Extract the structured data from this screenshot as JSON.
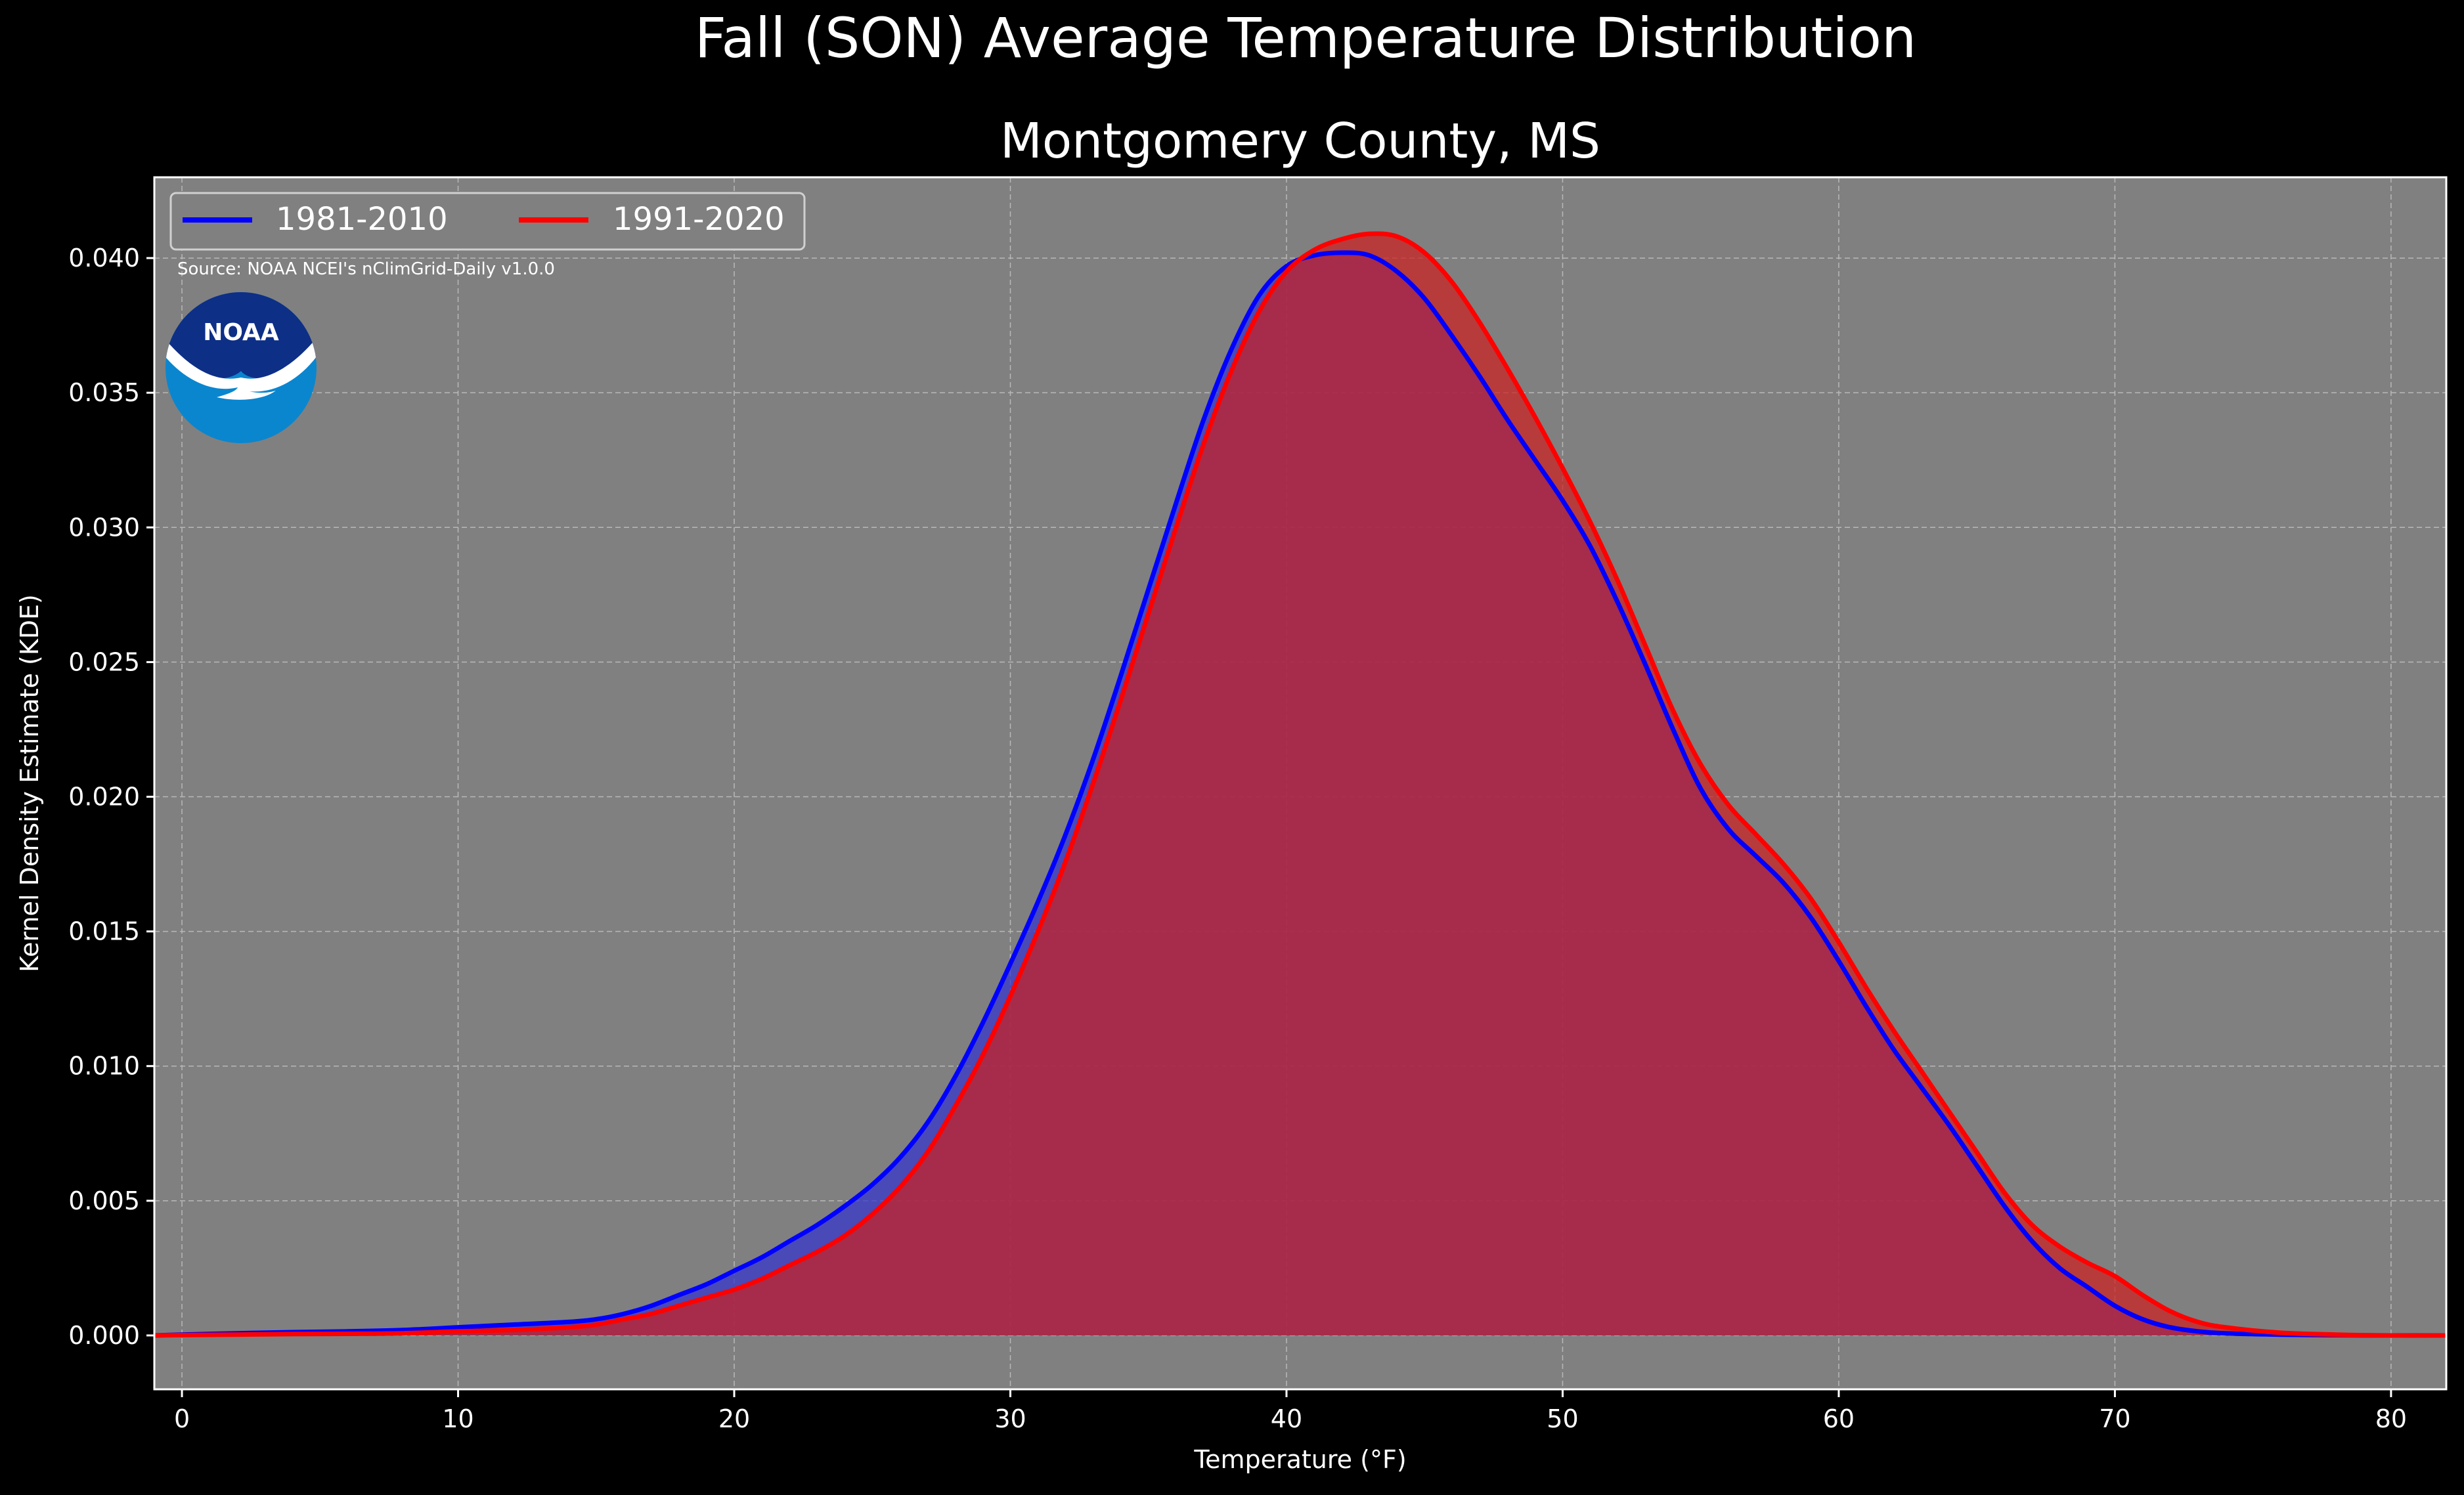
{
  "chart_data": {
    "type": "area",
    "suptitle": "Fall (SON) Average Temperature Distribution",
    "title": "Montgomery County, MS",
    "xlabel": "Temperature (°F)",
    "ylabel": "Kernel Density Estimate (KDE)",
    "xlim": [
      -1,
      82
    ],
    "ylim": [
      -0.002,
      0.043
    ],
    "xticks": [
      0,
      10,
      20,
      30,
      40,
      50,
      60,
      70,
      80
    ],
    "xtick_labels": [
      "0",
      "10",
      "20",
      "30",
      "40",
      "50",
      "60",
      "70",
      "80"
    ],
    "yticks": [
      0.0,
      0.005,
      0.01,
      0.015,
      0.02,
      0.025,
      0.03,
      0.035,
      0.04
    ],
    "ytick_labels": [
      "0.000",
      "0.005",
      "0.010",
      "0.015",
      "0.020",
      "0.025",
      "0.030",
      "0.035",
      "0.040"
    ],
    "grid": true,
    "legend_position": "top-left",
    "source_note": "Source: NOAA NCEI's nClimGrid-Daily v1.0.0",
    "logo_text": "NOAA",
    "series": [
      {
        "name": "1981-2010",
        "color": "#0000ff",
        "fill": "#3333cc",
        "points": [
          [
            -1,
            0.0
          ],
          [
            0,
            3e-05
          ],
          [
            2,
            8e-05
          ],
          [
            4,
            0.00012
          ],
          [
            6,
            0.00015
          ],
          [
            8,
            0.0002
          ],
          [
            10,
            0.0003
          ],
          [
            12,
            0.0004
          ],
          [
            14,
            0.0005
          ],
          [
            15,
            0.0006
          ],
          [
            16,
            0.0008
          ],
          [
            17,
            0.0011
          ],
          [
            18,
            0.0015
          ],
          [
            19,
            0.0019
          ],
          [
            20,
            0.0024
          ],
          [
            21,
            0.0029
          ],
          [
            22,
            0.0035
          ],
          [
            23,
            0.0041
          ],
          [
            24,
            0.0048
          ],
          [
            25,
            0.0056
          ],
          [
            26,
            0.0066
          ],
          [
            27,
            0.0079
          ],
          [
            28,
            0.0096
          ],
          [
            29,
            0.0116
          ],
          [
            30,
            0.0138
          ],
          [
            31,
            0.0161
          ],
          [
            32,
            0.0186
          ],
          [
            33,
            0.0214
          ],
          [
            34,
            0.0245
          ],
          [
            35,
            0.0277
          ],
          [
            36,
            0.0309
          ],
          [
            37,
            0.034
          ],
          [
            38,
            0.0366
          ],
          [
            39,
            0.0386
          ],
          [
            40,
            0.0397
          ],
          [
            41,
            0.0401
          ],
          [
            42,
            0.0402
          ],
          [
            43,
            0.0401
          ],
          [
            44,
            0.0395
          ],
          [
            45,
            0.0385
          ],
          [
            46,
            0.0371
          ],
          [
            47,
            0.0356
          ],
          [
            48,
            0.034
          ],
          [
            49,
            0.0325
          ],
          [
            50,
            0.031
          ],
          [
            51,
            0.0293
          ],
          [
            52,
            0.0272
          ],
          [
            53,
            0.0249
          ],
          [
            54,
            0.0225
          ],
          [
            55,
            0.0203
          ],
          [
            56,
            0.0188
          ],
          [
            57,
            0.0178
          ],
          [
            58,
            0.0168
          ],
          [
            59,
            0.0155
          ],
          [
            60,
            0.0139
          ],
          [
            61,
            0.0122
          ],
          [
            62,
            0.0106
          ],
          [
            63,
            0.0092
          ],
          [
            64,
            0.0078
          ],
          [
            65,
            0.0063
          ],
          [
            66,
            0.0048
          ],
          [
            67,
            0.0035
          ],
          [
            68,
            0.0025
          ],
          [
            69,
            0.0018
          ],
          [
            70,
            0.0011
          ],
          [
            71,
            0.0006
          ],
          [
            72,
            0.0003
          ],
          [
            73,
            0.00015
          ],
          [
            74,
            8e-05
          ],
          [
            76,
            3e-05
          ],
          [
            78,
            1e-05
          ],
          [
            80,
            0.0
          ],
          [
            82,
            0.0
          ]
        ]
      },
      {
        "name": "1991-2020",
        "color": "#ff0000",
        "fill": "#cc2020",
        "points": [
          [
            -1,
            0.0
          ],
          [
            0,
            1e-05
          ],
          [
            2,
            3e-05
          ],
          [
            4,
            5e-05
          ],
          [
            6,
            6e-05
          ],
          [
            8,
            8e-05
          ],
          [
            10,
            0.00015
          ],
          [
            12,
            0.0002
          ],
          [
            14,
            0.0003
          ],
          [
            15,
            0.0004
          ],
          [
            16,
            0.0006
          ],
          [
            17,
            0.0008
          ],
          [
            18,
            0.0011
          ],
          [
            19,
            0.0014
          ],
          [
            20,
            0.0017
          ],
          [
            21,
            0.0021
          ],
          [
            22,
            0.0026
          ],
          [
            23,
            0.0031
          ],
          [
            24,
            0.0037
          ],
          [
            25,
            0.0045
          ],
          [
            26,
            0.0055
          ],
          [
            27,
            0.0068
          ],
          [
            28,
            0.0085
          ],
          [
            29,
            0.0104
          ],
          [
            30,
            0.0126
          ],
          [
            31,
            0.015
          ],
          [
            32,
            0.0176
          ],
          [
            33,
            0.0205
          ],
          [
            34,
            0.0236
          ],
          [
            35,
            0.0268
          ],
          [
            36,
            0.03
          ],
          [
            37,
            0.0331
          ],
          [
            38,
            0.0358
          ],
          [
            39,
            0.038
          ],
          [
            40,
            0.0395
          ],
          [
            41,
            0.0403
          ],
          [
            42,
            0.0407
          ],
          [
            43,
            0.0409
          ],
          [
            44,
            0.0408
          ],
          [
            45,
            0.0402
          ],
          [
            46,
            0.0391
          ],
          [
            47,
            0.0376
          ],
          [
            48,
            0.0359
          ],
          [
            49,
            0.0341
          ],
          [
            50,
            0.0322
          ],
          [
            51,
            0.0302
          ],
          [
            52,
            0.028
          ],
          [
            53,
            0.0256
          ],
          [
            54,
            0.0232
          ],
          [
            55,
            0.0212
          ],
          [
            56,
            0.0197
          ],
          [
            57,
            0.0186
          ],
          [
            58,
            0.0175
          ],
          [
            59,
            0.0162
          ],
          [
            60,
            0.0146
          ],
          [
            61,
            0.0129
          ],
          [
            62,
            0.0113
          ],
          [
            63,
            0.0098
          ],
          [
            64,
            0.0083
          ],
          [
            65,
            0.0068
          ],
          [
            66,
            0.0053
          ],
          [
            67,
            0.0041
          ],
          [
            68,
            0.0033
          ],
          [
            69,
            0.0027
          ],
          [
            70,
            0.0022
          ],
          [
            71,
            0.0015
          ],
          [
            72,
            0.0009
          ],
          [
            73,
            0.0005
          ],
          [
            74,
            0.0003
          ],
          [
            76,
            0.0001
          ],
          [
            78,
            3e-05
          ],
          [
            80,
            0.0
          ],
          [
            82,
            0.0
          ]
        ]
      }
    ]
  }
}
